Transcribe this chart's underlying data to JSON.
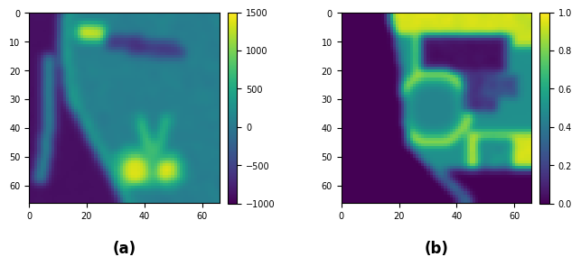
{
  "figsize": [
    6.4,
    2.93
  ],
  "dpi": 100,
  "cmap_a": "viridis",
  "cmap_b": "viridis",
  "vmin_a": -1000,
  "vmax_a": 1500,
  "vmin_b": 0.0,
  "vmax_b": 1.0,
  "label_a": "(a)",
  "label_b": "(b)",
  "grid_size": 67,
  "xticks": [
    0,
    20,
    40,
    60
  ],
  "yticks": [
    0,
    10,
    20,
    30,
    40,
    50,
    60
  ],
  "colorbar_ticks_a": [
    -1000,
    -500,
    0,
    500,
    1000,
    1500
  ],
  "colorbar_ticks_b": [
    0.0,
    0.2,
    0.4,
    0.6,
    0.8,
    1.0
  ]
}
